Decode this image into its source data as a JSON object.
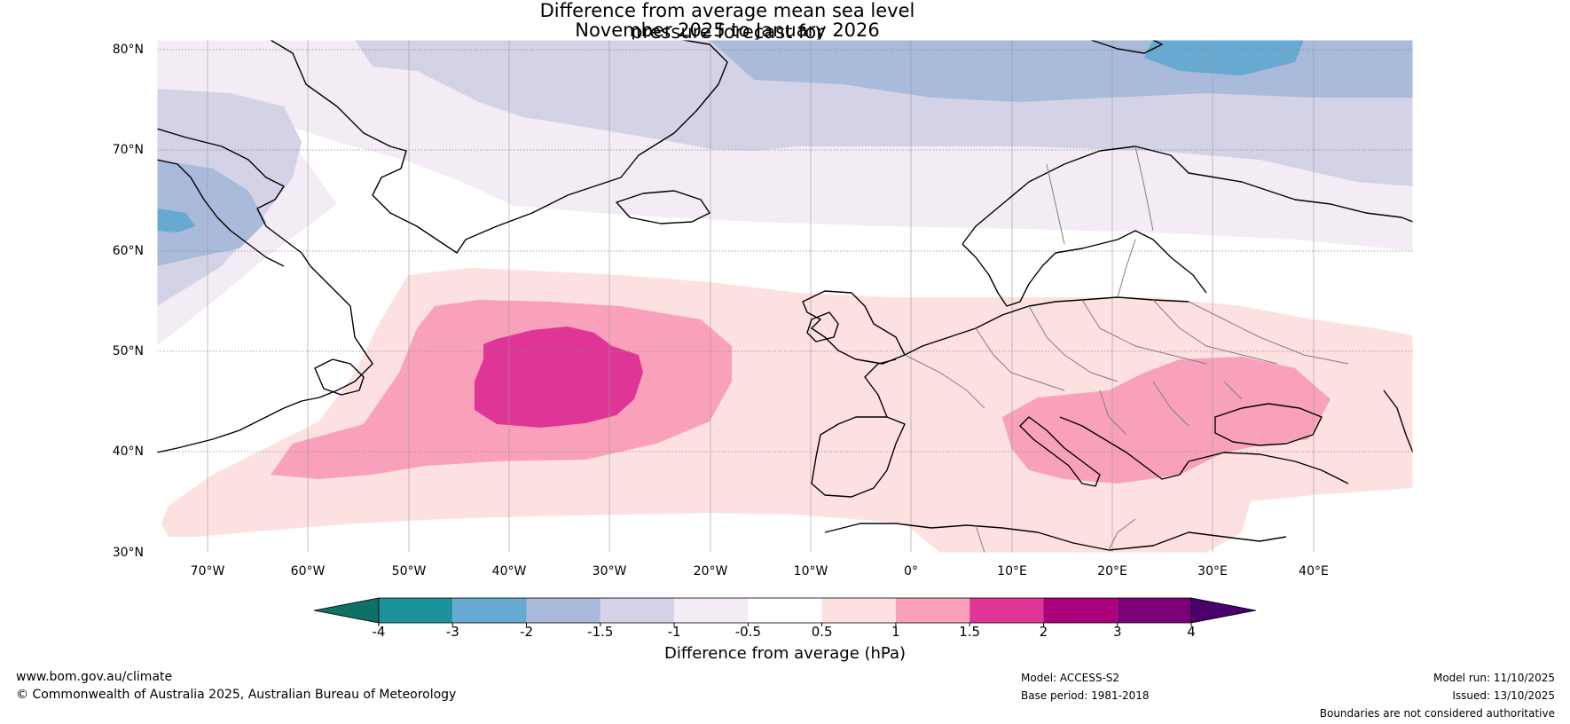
{
  "title": {
    "line1": "Difference from average mean sea level pressure forecast for",
    "line2": "November 2025 to January 2026"
  },
  "map": {
    "lat_labels": [
      "80°N",
      "70°N",
      "60°N",
      "50°N",
      "40°N",
      "30°N"
    ],
    "lon_labels": [
      "70°W",
      "60°W",
      "50°W",
      "40°W",
      "30°W",
      "20°W",
      "10°W",
      "0°",
      "10°E",
      "20°E",
      "30°E",
      "40°E"
    ],
    "extent": {
      "lon_min": -75,
      "lon_max": 50,
      "lat_min": 30,
      "lat_max": 81
    }
  },
  "colorbar": {
    "title": "Difference from average (hPa)",
    "ticks": [
      "-4",
      "-3",
      "-2",
      "-1.5",
      "-1",
      "-0.5",
      "0.5",
      "1",
      "1.5",
      "2",
      "3",
      "4"
    ],
    "colors": [
      "#0e7163",
      "#1e929c",
      "#67a9d0",
      "#a9badb",
      "#d3d2e6",
      "#f3ecf5",
      "#ffffff",
      "#fde0e0",
      "#f9a1ba",
      "#de3596",
      "#ab027c",
      "#7c0179",
      "#4a006a"
    ]
  },
  "footer": {
    "website": "www.bom.gov.au/climate",
    "copyright": "© Commonwealth of Australia 2025, Australian Bureau of Meteorology",
    "model": "Model: ACCESS-S2",
    "base_period": "Base period: 1981-2018",
    "model_run": "Model run: 11/10/2025",
    "issued": "Issued: 13/10/2025",
    "disclaimer": "Boundaries are not considered authoritative"
  }
}
